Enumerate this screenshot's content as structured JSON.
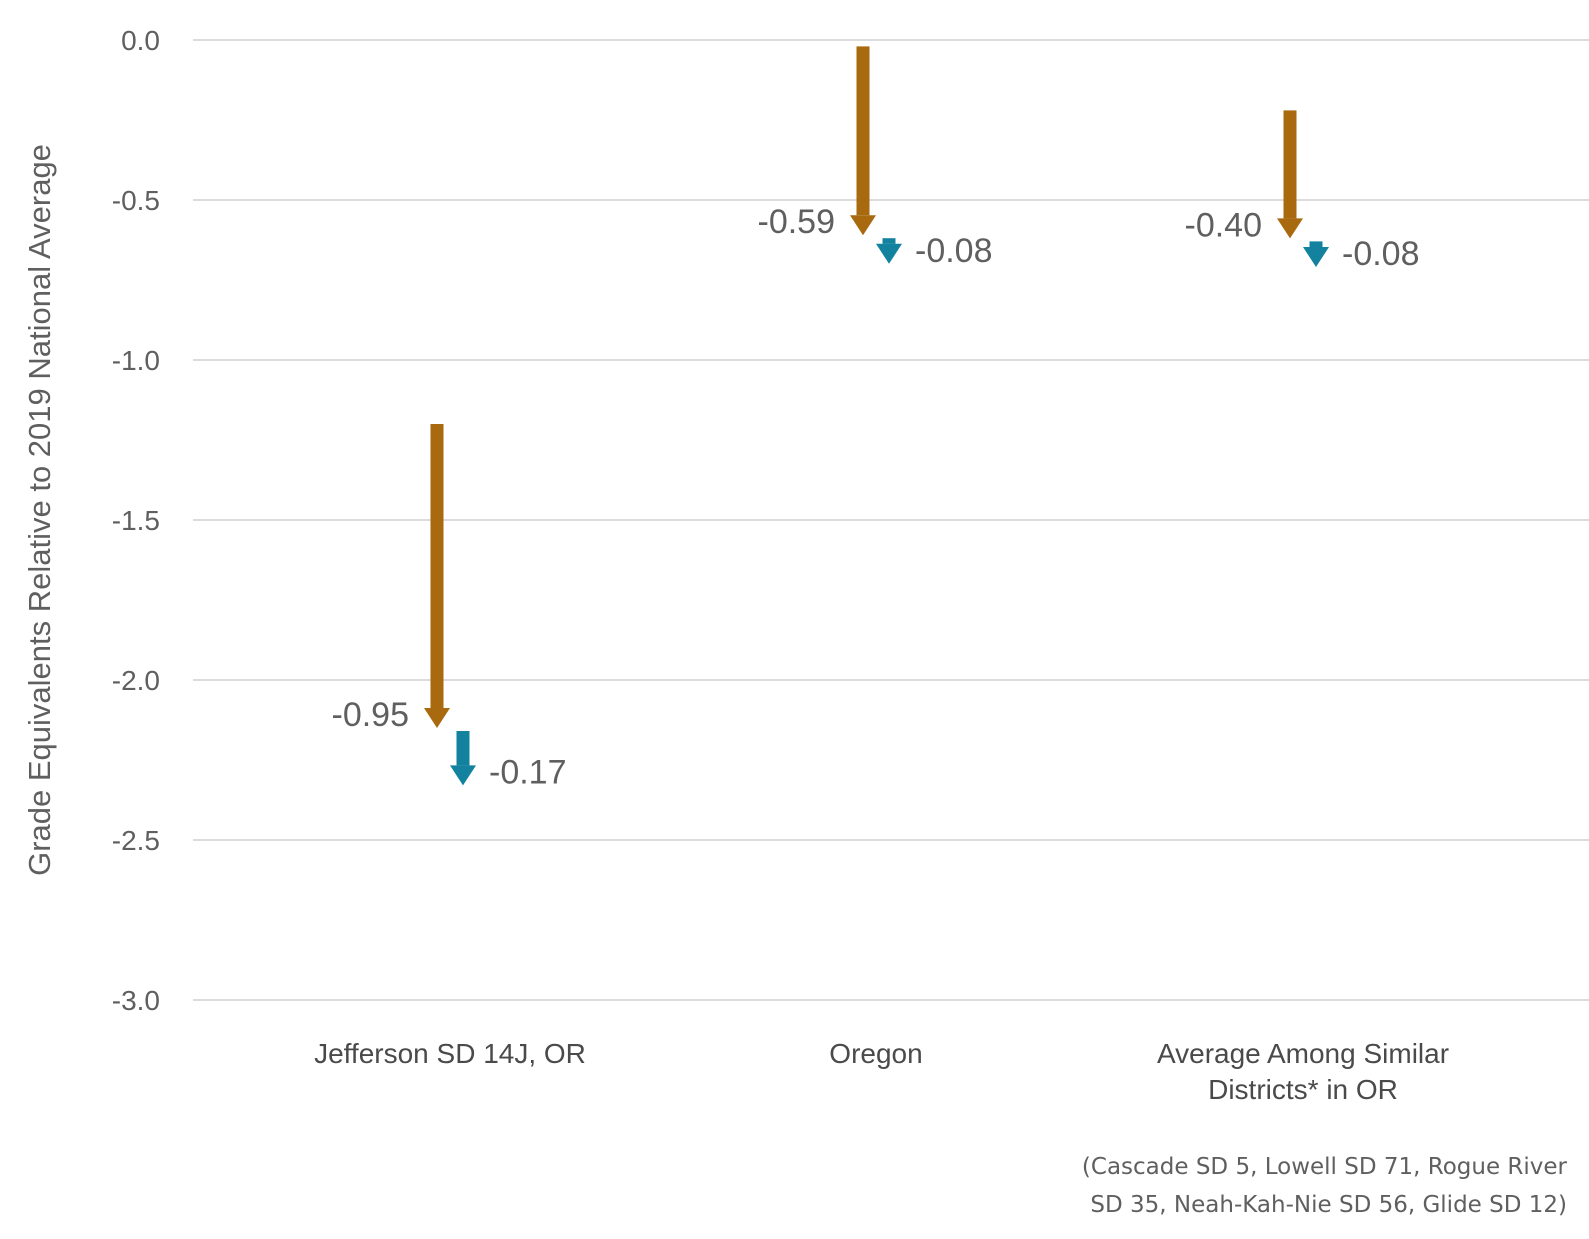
{
  "chart_data": {
    "type": "arrow",
    "ylabel": "Grade Equivalents Relative to 2019 National Average",
    "ylim": [
      -3.0,
      0.0
    ],
    "yticks": [
      "0.0",
      "-0.5",
      "-1.0",
      "-1.5",
      "-2.0",
      "-2.5",
      "-3.0"
    ],
    "grid": true,
    "colors": {
      "first_change": "#a8690f",
      "second_change": "#13829f",
      "grid": "#dcdcdc",
      "text": "#5f5f5f"
    },
    "categories": [
      {
        "label_lines": [
          "Jefferson SD 14J, OR"
        ],
        "start": -1.2,
        "first_change": -0.95,
        "first_label": "-0.95",
        "second_change": -0.17,
        "second_label": "-0.17"
      },
      {
        "label_lines": [
          "Oregon"
        ],
        "start": -0.02,
        "first_change": -0.59,
        "first_label": "-0.59",
        "second_change": -0.08,
        "second_label": "-0.08"
      },
      {
        "label_lines": [
          "Average Among Similar",
          "Districts* in OR"
        ],
        "start": -0.22,
        "first_change": -0.4,
        "first_label": "-0.40",
        "second_change": -0.08,
        "second_label": "-0.08"
      }
    ],
    "footnote": [
      "(Cascade SD 5, Lowell SD 71, Rogue River",
      "SD 35, Neah-Kah-Nie SD 56, Glide SD 12)"
    ]
  }
}
